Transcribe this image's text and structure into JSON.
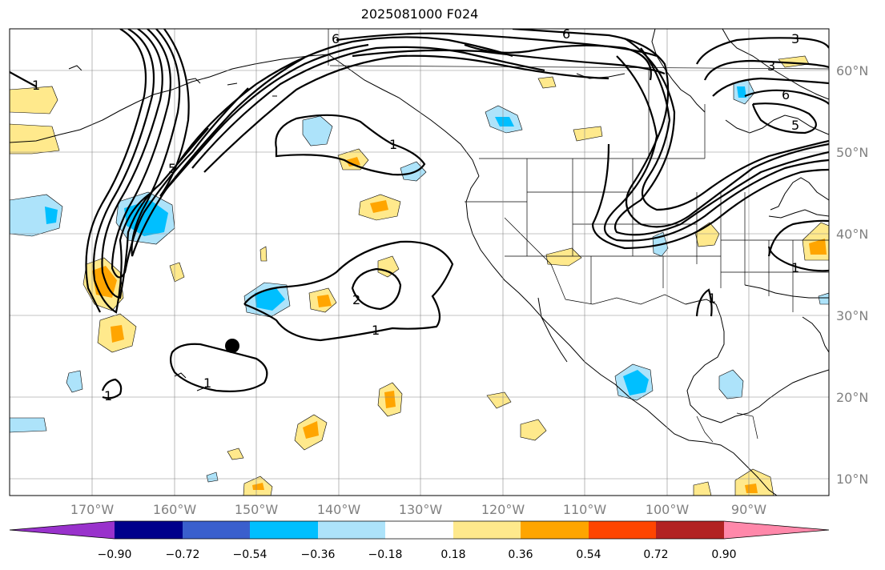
{
  "title": "2025081000 F024",
  "lon_labels": [
    "170°W",
    "160°W",
    "150°W",
    "140°W",
    "130°W",
    "120°W",
    "110°W",
    "100°W",
    "90°W"
  ],
  "lat_labels": [
    "60°N",
    "50°N",
    "40°N",
    "30°N",
    "20°N",
    "10°N"
  ],
  "contour_labels": [
    "1",
    "1",
    "1",
    "1",
    "1",
    "1",
    "1",
    "2",
    "3",
    "3",
    "5",
    "5",
    "6",
    "6",
    "6"
  ],
  "colorbar": {
    "ticks": [
      "−0.90",
      "−0.72",
      "−0.54",
      "−0.36",
      "−0.18",
      "0.18",
      "0.36",
      "0.54",
      "0.72",
      "0.90"
    ],
    "colors": [
      "#9932cc",
      "#00008b",
      "#3a5fcd",
      "#00bfff",
      "#ade3fa",
      "#ffffff",
      "#ffe98c",
      "#ffa500",
      "#ff4500",
      "#b22222",
      "#ff88aa"
    ]
  },
  "marker_icon": "black-dot"
}
